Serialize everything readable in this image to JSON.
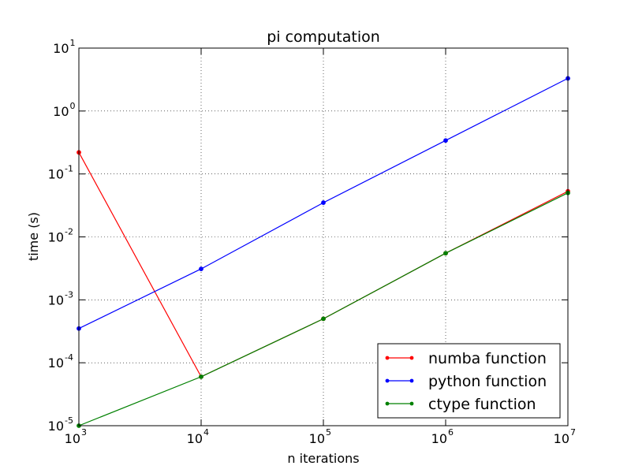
{
  "chart_data": {
    "type": "line",
    "title": "pi computation",
    "xlabel": "n iterations",
    "ylabel": "time (s)",
    "xscale": "log",
    "yscale": "log",
    "xlim": [
      1000,
      10000000
    ],
    "ylim": [
      1e-05,
      10
    ],
    "grid": true,
    "legend_position": "lower-right",
    "x_ticks": [
      {
        "base": "10",
        "exp": "3",
        "value": 1000
      },
      {
        "base": "10",
        "exp": "4",
        "value": 10000
      },
      {
        "base": "10",
        "exp": "5",
        "value": 100000
      },
      {
        "base": "10",
        "exp": "6",
        "value": 1000000
      },
      {
        "base": "10",
        "exp": "7",
        "value": 10000000
      }
    ],
    "y_ticks": [
      {
        "base": "10",
        "exp": "-5",
        "value": 1e-05
      },
      {
        "base": "10",
        "exp": "-4",
        "value": 0.0001
      },
      {
        "base": "10",
        "exp": "-3",
        "value": 0.001
      },
      {
        "base": "10",
        "exp": "-2",
        "value": 0.01
      },
      {
        "base": "10",
        "exp": "-1",
        "value": 0.1
      },
      {
        "base": "10",
        "exp": "0",
        "value": 1
      },
      {
        "base": "10",
        "exp": "1",
        "value": 10
      }
    ],
    "x": [
      1000,
      10000,
      100000,
      1000000,
      10000000
    ],
    "series": [
      {
        "name": "numba function",
        "color": "#ff0000",
        "values": [
          0.22,
          6e-05,
          0.0005,
          0.0055,
          0.053
        ]
      },
      {
        "name": "python function",
        "color": "#0000ff",
        "values": [
          0.00035,
          0.0031,
          0.035,
          0.34,
          3.3
        ]
      },
      {
        "name": "ctype function",
        "color": "#008000",
        "values": [
          1e-05,
          6e-05,
          0.0005,
          0.0055,
          0.05
        ]
      }
    ]
  }
}
